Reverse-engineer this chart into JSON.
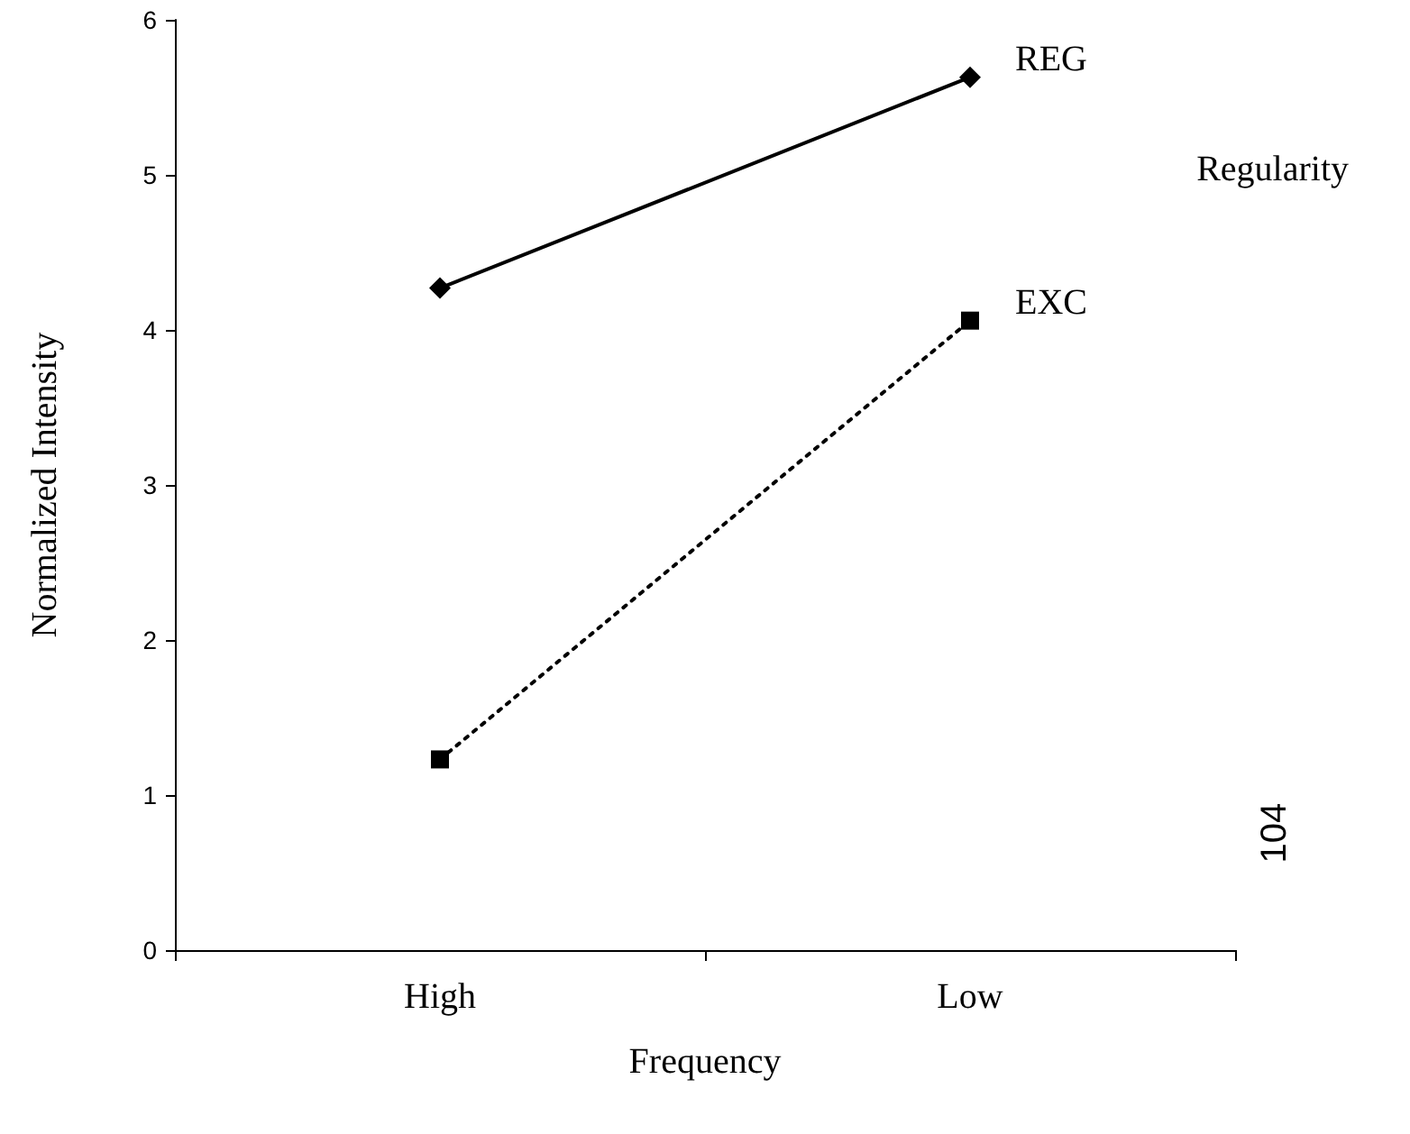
{
  "chart_data": {
    "type": "line",
    "xlabel": "Frequency",
    "ylabel": "Normalized Intensity",
    "legend_title": "Regularity",
    "annotations": [
      "104"
    ],
    "categories": [
      "High",
      "Low"
    ],
    "series": [
      {
        "name": "REG",
        "color": "#000000",
        "values": [
          4.27,
          5.63
        ],
        "marker": "diamond",
        "line_style": "solid"
      },
      {
        "name": "EXC",
        "color": "#000000",
        "values": [
          1.23,
          4.06
        ],
        "marker": "square",
        "line_style": "dotted"
      }
    ],
    "ylim": [
      0,
      6
    ],
    "yticks": [
      0,
      1,
      2,
      3,
      4,
      5,
      6
    ],
    "grid": false,
    "legend": false
  }
}
